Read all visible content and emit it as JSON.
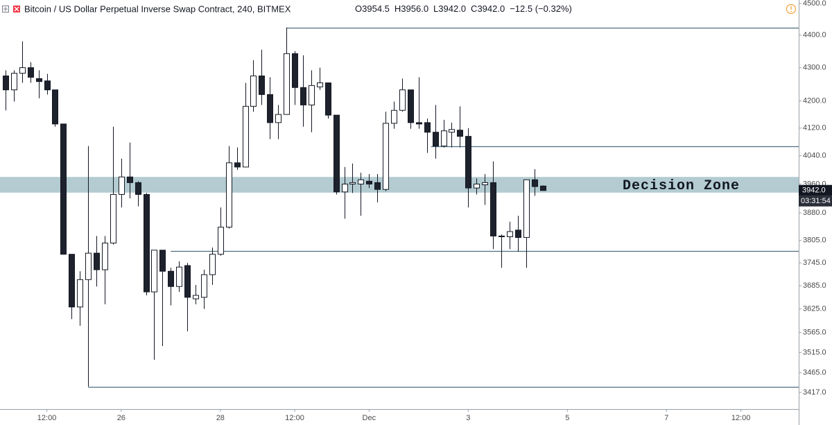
{
  "chart_data": {
    "type": "candlestick",
    "title": "Bitcoin / US Dollar Perpetual Inverse Swap Contract, 240, BITMEX",
    "ohlc_labels": [
      "O",
      "H",
      "L",
      "C"
    ],
    "ohlc_value_labels": [
      "3954.5",
      "3956.0",
      "3942.0",
      "3942.0"
    ],
    "change_label": "−12.5 (−0.32%)",
    "last_price_label": "3942.0",
    "countdown": "03:31:54",
    "log_scale": true,
    "up_color": "#ffffff",
    "down_color": "#1e222d",
    "edge_color": "#131722",
    "categories": [
      null,
      null,
      null,
      null,
      null,
      null,
      null,
      null,
      null,
      null,
      null,
      null,
      null,
      null,
      null,
      null,
      null,
      null,
      null,
      null,
      null,
      null,
      null,
      null,
      null,
      null,
      null,
      null,
      null,
      null,
      null,
      null,
      null,
      null,
      null,
      null,
      null,
      null,
      null,
      null,
      null,
      null,
      null,
      null,
      null,
      null,
      null,
      null,
      null,
      null,
      null,
      null,
      null,
      null,
      null,
      null,
      null,
      null,
      null,
      null,
      null,
      null,
      null,
      null,
      null,
      null
    ],
    "open": [
      4275,
      4233,
      4283,
      4300,
      4267,
      4260,
      4233,
      4132,
      3768,
      3630,
      3701,
      3771,
      3727,
      3798,
      3931,
      3980,
      3964,
      3931,
      3669,
      3779,
      3723,
      3683,
      3738,
      3651,
      3655,
      3714,
      3768,
      3841,
      4020,
      4008,
      4184,
      4275,
      4219,
      4136,
      4160,
      4343,
      4240,
      4188,
      4242,
      4254,
      4158,
      3938,
      3960,
      3960,
      3968,
      3964,
      3945,
      4134,
      4172,
      4233,
      4136,
      4136,
      4108,
      4068,
      4108,
      4114,
      4096,
      3949,
      3958,
      3964,
      3817,
      3815,
      3833,
      3813,
      3972,
      3954.5
    ],
    "high": [
      4292,
      4292,
      4381,
      4317,
      4292,
      4281,
      4233,
      4132,
      3768,
      3723,
      4068,
      3817,
      3817,
      4124,
      4032,
      4078,
      3968,
      3935,
      3779,
      3779,
      3732,
      3749,
      3745,
      3687,
      3727,
      3786,
      3895,
      4068,
      4064,
      4254,
      4323,
      4355,
      4271,
      4188,
      4424,
      4351,
      4338,
      4292,
      4300,
      4254,
      4158,
      4008,
      4018,
      3992,
      3988,
      3988,
      4168,
      4198,
      4267,
      4233,
      4271,
      4148,
      4188,
      4144,
      4136,
      4184,
      4120,
      3976,
      3988,
      4024,
      3821,
      3856,
      3872,
      3972,
      4002,
      3956
    ],
    "low": [
      4172,
      4198,
      4254,
      4254,
      4208,
      4219,
      4124,
      3768,
      3599,
      3582,
      3431,
      3683,
      3637,
      3794,
      3895,
      3920,
      3898,
      3660,
      3497,
      3531,
      3634,
      3669,
      3568,
      3637,
      3625,
      3687,
      3764,
      3837,
      4000,
      4008,
      4168,
      4188,
      4088,
      4088,
      4160,
      4188,
      4124,
      4108,
      4233,
      4148,
      3931,
      3864,
      3935,
      3872,
      3949,
      3909,
      3940,
      4118,
      4168,
      4118,
      4118,
      4048,
      4032,
      4064,
      4064,
      4064,
      3895,
      3931,
      3902,
      3782,
      3732,
      3782,
      3775,
      3732,
      3927,
      3942
    ],
    "close": [
      4233,
      4283,
      4300,
      4271,
      4258,
      4233,
      4132,
      3768,
      3630,
      3701,
      3771,
      3727,
      3798,
      3931,
      3980,
      3964,
      3931,
      3669,
      3779,
      3723,
      3683,
      3734,
      3655,
      3660,
      3714,
      3768,
      3841,
      4020,
      4008,
      4184,
      4275,
      4219,
      4136,
      4160,
      4343,
      4240,
      4188,
      4246,
      4254,
      4158,
      3938,
      3960,
      3964,
      3972,
      3960,
      3945,
      4134,
      4172,
      4233,
      4136,
      4132,
      4108,
      4068,
      4112,
      4116,
      4096,
      3949,
      3960,
      3964,
      3817,
      3815,
      3829,
      3813,
      3972,
      3953,
      3942
    ],
    "levels": [
      {
        "value": 4424,
        "start": 34
      },
      {
        "value": 4068,
        "start": 51.5
      },
      {
        "value": 3777,
        "start": 20
      },
      {
        "value": 3431,
        "start": 10
      }
    ],
    "level_color": "#4d6e7c",
    "zone": {
      "label": "Decision Zone",
      "low": 3936,
      "high": 3980,
      "color": "#b3cbd1"
    },
    "xlim": [
      -0.67,
      96
    ],
    "xticks": [
      {
        "value": 5,
        "label": "12:00"
      },
      {
        "value": 14,
        "label": "26"
      },
      {
        "value": 26,
        "label": "28"
      },
      {
        "value": 35,
        "label": "12:00"
      },
      {
        "value": 44,
        "label": "Dec"
      },
      {
        "value": 56,
        "label": "3"
      },
      {
        "value": 68,
        "label": "5"
      },
      {
        "value": 80,
        "label": "7"
      },
      {
        "value": 89,
        "label": "12:00"
      }
    ],
    "ylim": [
      3377,
      4511
    ],
    "yticks": [
      {
        "value": 4500,
        "label": "4500.0"
      },
      {
        "value": 4400,
        "label": "4400.0"
      },
      {
        "value": 4300,
        "label": "4300.0"
      },
      {
        "value": 4200,
        "label": "4200.0"
      },
      {
        "value": 4120,
        "label": "4120.0"
      },
      {
        "value": 4040,
        "label": "4040.0"
      },
      {
        "value": 3960,
        "label": "3960.0"
      },
      {
        "value": 3880,
        "label": "3880.0"
      },
      {
        "value": 3805,
        "label": "3805.0"
      },
      {
        "value": 3745,
        "label": "3745.0"
      },
      {
        "value": 3685,
        "label": "3685.0"
      },
      {
        "value": 3625,
        "label": "3625.0"
      },
      {
        "value": 3565,
        "label": "3565.0"
      },
      {
        "value": 3515,
        "label": "3515.0"
      },
      {
        "value": 3465,
        "label": "3465.0"
      },
      {
        "value": 3417,
        "label": "3417.0"
      }
    ]
  }
}
